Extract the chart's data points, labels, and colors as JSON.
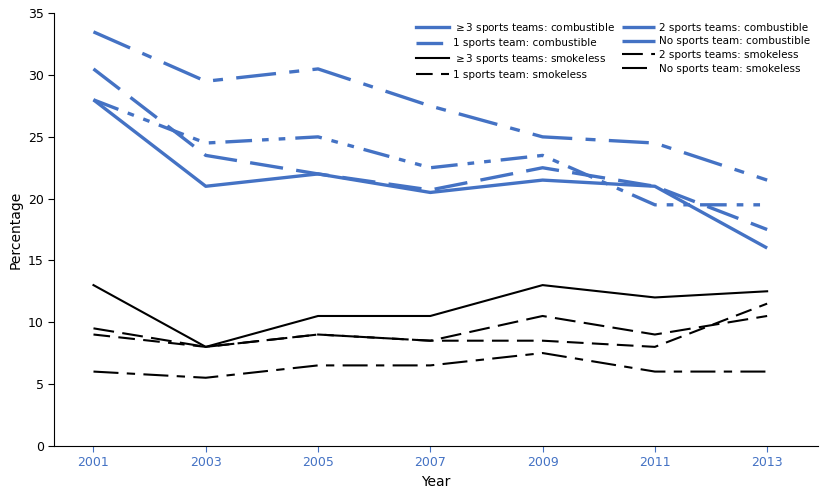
{
  "years": [
    2001,
    2003,
    2005,
    2007,
    2009,
    2011,
    2013
  ],
  "ge3_combustible": [
    28.0,
    21.0,
    22.0,
    20.5,
    21.5,
    21.0,
    16.0
  ],
  "ge3_smokeless": [
    13.0,
    8.0,
    10.5,
    10.5,
    13.0,
    12.0,
    12.5
  ],
  "two_combustible": [
    30.5,
    23.5,
    22.0,
    20.7,
    22.5,
    21.0,
    17.5
  ],
  "two_smokeless": [
    9.5,
    8.0,
    9.0,
    8.5,
    10.5,
    9.0,
    10.5
  ],
  "one_combustible": [
    28.0,
    24.5,
    25.0,
    22.5,
    23.5,
    19.5,
    19.5
  ],
  "one_smokeless": [
    9.0,
    8.0,
    9.0,
    8.5,
    8.5,
    8.0,
    11.5
  ],
  "no_combustible": [
    33.5,
    29.5,
    30.5,
    27.5,
    25.0,
    24.5,
    21.5
  ],
  "no_smokeless": [
    6.0,
    5.5,
    6.5,
    6.5,
    7.5,
    6.0,
    6.0
  ],
  "blue_color": "#4472C4",
  "black_color": "#000000",
  "xlabel": "Year",
  "ylabel": "Percentage",
  "ylim": [
    0,
    35
  ],
  "yticks": [
    0,
    5,
    10,
    15,
    20,
    25,
    30,
    35
  ]
}
